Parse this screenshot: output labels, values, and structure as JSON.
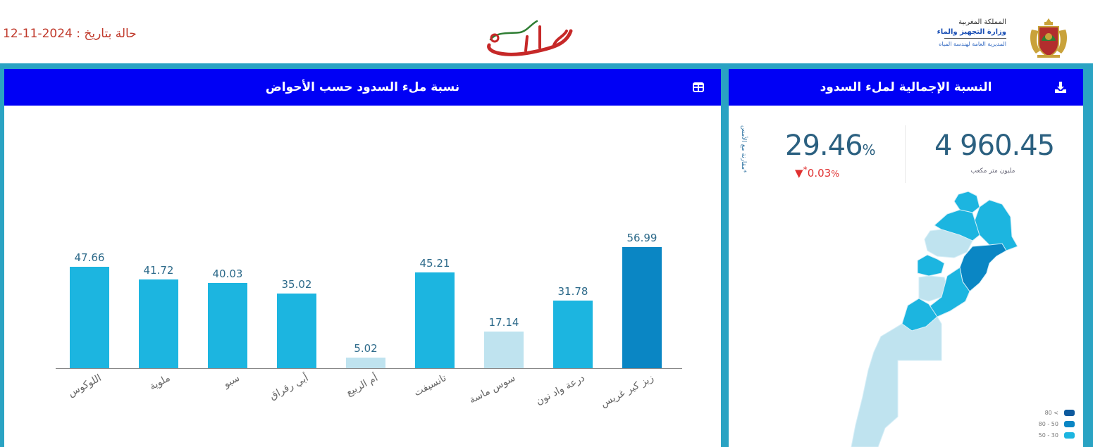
{
  "header": {
    "date_status": "حالة بتاريخ : 2024-11-12",
    "brand_logo_text": "مغرب السدود",
    "ministry": {
      "line1": "المملكة المغربية",
      "line2": "وزارة التجهيز والماء",
      "line3": "المديرية العامة لهندسة المياه"
    }
  },
  "left_panel": {
    "title": "نسبة ملء السدود حسب الأحواض",
    "table_toggle_icon": "table-icon"
  },
  "right_panel": {
    "title": "النسبة الإجمالية لملء السدود",
    "download_icon": "download-icon",
    "kpi": {
      "fill_percent": "29.46",
      "percent_sign": "%",
      "delta": "0.03",
      "delta_prefix": "*",
      "delta_direction": "down",
      "side_note": "*مقارنة مع الأمس",
      "volume": "4 960.45",
      "volume_unit": "مليون متر مكعب"
    },
    "legend": [
      {
        "label": "80 <",
        "color": "#0d5a9e"
      },
      {
        "label": "80 - 50",
        "color": "#0a86c4"
      },
      {
        "label": "50 - 30",
        "color": "#1cb5e0"
      }
    ]
  },
  "colors": {
    "header_bar": "#0000f5",
    "frame": "#2aa3c3",
    "bar_mid": "#1cb5e0",
    "bar_low": "#bfe3ef",
    "bar_high": "#0a86c4",
    "value_text": "#2d6a8a",
    "date_text": "#c0392b"
  },
  "chart_data": {
    "type": "bar",
    "title": "نسبة ملء السدود حسب الأحواض",
    "xlabel": "",
    "ylabel": "",
    "ylim": [
      0,
      60
    ],
    "grid": false,
    "legend": null,
    "categories": [
      "اللوكوس",
      "ملوية",
      "سبو",
      "أبي رقراق",
      "أم الربيع",
      "تانسيفت",
      "سوس ماسة",
      "درعة واد نون",
      "زيز كير غريس"
    ],
    "values": [
      47.66,
      41.72,
      40.03,
      35.02,
      5.02,
      45.21,
      17.14,
      31.78,
      56.99
    ],
    "bar_colors": [
      "#1cb5e0",
      "#1cb5e0",
      "#1cb5e0",
      "#1cb5e0",
      "#bfe3ef",
      "#1cb5e0",
      "#bfe3ef",
      "#1cb5e0",
      "#0a86c4"
    ]
  }
}
